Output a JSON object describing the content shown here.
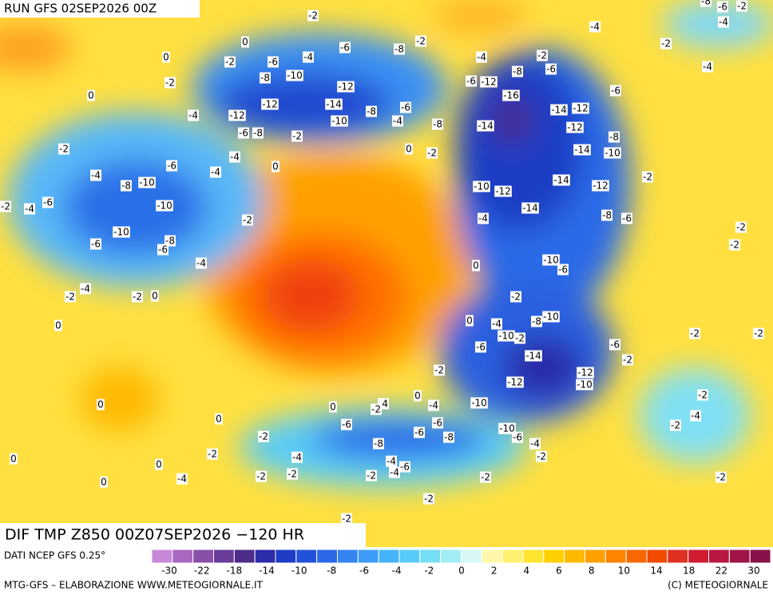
{
  "header": {
    "run": "RUN GFS 02SEP2026 00Z"
  },
  "footer": {
    "title": "DIF TMP Z850 00Z07SEP2026 −120 HR",
    "source": "DATI NCEP GFS 0.25°",
    "credit": "MTG-GFS – ELABORAZIONE WWW.METEOGIORNALE.IT",
    "copyright": "(C) METEOGIORNALE"
  },
  "legend": {
    "ticks": [
      -30,
      -22,
      -18,
      -14,
      -10,
      -8,
      -6,
      -4,
      -2,
      0,
      2,
      4,
      6,
      8,
      10,
      14,
      18,
      22,
      30
    ],
    "colors": [
      "#c888d8",
      "#a868c0",
      "#8850a8",
      "#683c98",
      "#4c2c88",
      "#2c2ca8",
      "#1e3cc4",
      "#2252d8",
      "#2a68e8",
      "#3484f2",
      "#3c9cf8",
      "#46b4fa",
      "#58ccf8",
      "#74def4",
      "#a0eef4",
      "#d8f8f8",
      "#fff8a8",
      "#fff070",
      "#ffe430",
      "#ffd000",
      "#ffb800",
      "#ffa000",
      "#ff8400",
      "#f86800",
      "#f04c00",
      "#e03020",
      "#d01c30",
      "#b81840",
      "#a01448",
      "#88104a"
    ]
  },
  "map": {
    "labels": [
      0,
      -2,
      0,
      -2,
      -6,
      -4,
      -6,
      -8,
      -2,
      -4,
      -2,
      -4,
      -2,
      -4,
      -4,
      -2,
      -8,
      -10,
      -12,
      -12,
      -14,
      -12,
      -10,
      -8,
      -6,
      -4,
      -8,
      -6,
      -12,
      -8,
      -6,
      -16,
      -14,
      -14,
      -12,
      -12,
      -6,
      -8,
      -14,
      -10,
      0,
      -4,
      -6,
      -8,
      -2,
      -4,
      -2,
      0,
      -2,
      0,
      -6,
      -4,
      -4,
      -8,
      -10,
      -4,
      -6,
      -2,
      -10,
      -10,
      -8,
      -6,
      -6,
      -2,
      -10,
      -12,
      -14,
      -12,
      -2,
      -14,
      -4,
      -8,
      -6,
      0,
      -10,
      -6,
      -2,
      -2,
      -4,
      -4,
      -2,
      -2,
      0,
      0,
      -2,
      -10,
      -8,
      0,
      -4,
      -10,
      -2,
      -6,
      -14,
      -6,
      -2,
      -2,
      -2,
      -2,
      -12,
      -10,
      -12,
      0,
      -4,
      0,
      -4,
      -10,
      -2,
      0,
      0,
      -6,
      -6,
      -6,
      -10,
      -6,
      -4,
      -8,
      -2,
      -4,
      -2,
      -2,
      -8,
      -2,
      -4,
      -4,
      -6,
      -2,
      0,
      0,
      -4,
      -2,
      -2,
      -2,
      -4,
      -2,
      0,
      -2,
      -2,
      -2,
      -2,
      -6,
      -8
    ]
  }
}
